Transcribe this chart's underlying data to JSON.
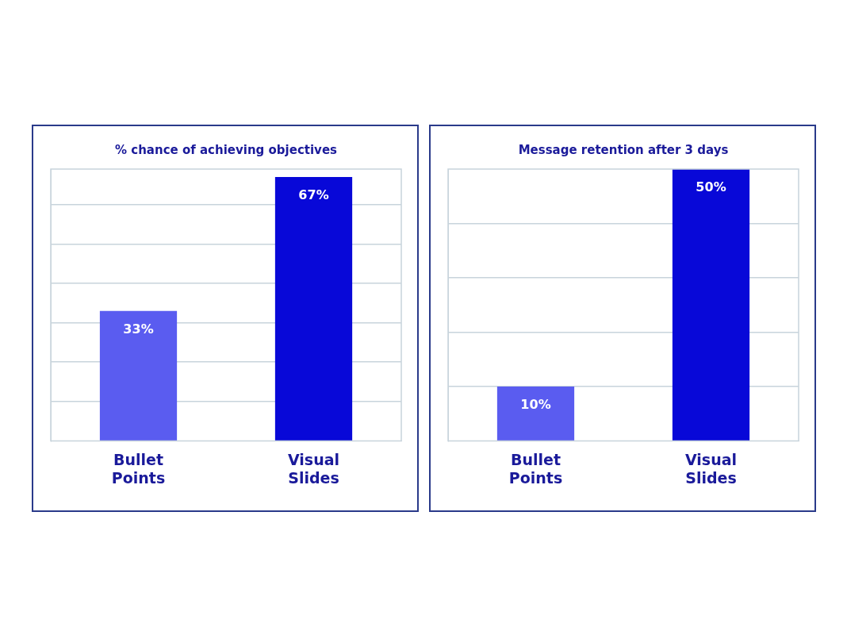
{
  "chart_data": [
    {
      "type": "bar",
      "title": "% chance of achieving objectives",
      "categories": [
        "Bullet Points",
        "Visual Slides"
      ],
      "values": [
        33,
        67
      ],
      "colors": [
        "#5a5cf0",
        "#0808d8"
      ],
      "ylim": [
        0,
        69
      ],
      "yticks": [
        {
          "value": 10,
          "label": null
        },
        {
          "value": 20,
          "label": null
        },
        {
          "value": 30,
          "label": null
        },
        {
          "value": 40,
          "label": null
        },
        {
          "value": 50,
          "label": null
        },
        {
          "value": 60,
          "label": null
        }
      ],
      "grid": "y",
      "tick_labels": "x",
      "value_labels": [
        "33%",
        "67%"
      ]
    },
    {
      "type": "bar",
      "title": "Message retention after 3 days",
      "categories": [
        "Bullet Points",
        "Visual Slides"
      ],
      "values": [
        10,
        50
      ],
      "colors": [
        "#5a5cf0",
        "#0808d8"
      ],
      "ylim": [
        0,
        50
      ],
      "yticks": [
        {
          "value": 10,
          "label": null
        },
        {
          "value": 20,
          "label": null
        },
        {
          "value": 30,
          "label": null
        },
        {
          "value": 40,
          "label": null
        }
      ],
      "grid": "y",
      "tick_labels": "x",
      "value_labels": [
        "10%",
        "50%"
      ]
    }
  ]
}
